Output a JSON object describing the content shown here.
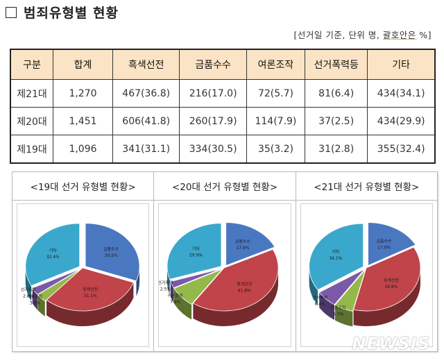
{
  "title": "범죄유형별 현황",
  "note": {
    "prefix": "[선거일 기준, 단위 명, ",
    "underlined": "괄호안은",
    "suffix": " %]"
  },
  "table": {
    "headers": [
      "구분",
      "합계",
      "흑색선전",
      "금품수수",
      "여론조작",
      "선거폭력등",
      "기타"
    ],
    "rows": [
      [
        "제21대",
        "1,270",
        "467(36.8)",
        "216(17.0)",
        "72(5.7)",
        "81(6.4)",
        "434(34.1)"
      ],
      [
        "제20대",
        "1,451",
        "606(41.8)",
        "260(17.9)",
        "114(7.9)",
        "37(2.5)",
        "434(29.9)"
      ],
      [
        "제19대",
        "1,096",
        "341(31.1)",
        "334(30.5)",
        "35(3.2)",
        "31(2.8)",
        "355(32.4)"
      ]
    ]
  },
  "colors": {
    "금품수수": "#4a78c0",
    "흑색선전": "#c0444a",
    "여론조작": "#95b84a",
    "선거폭력": "#7a5aa8",
    "기타": "#3aa8cc",
    "header_bg": "#fbe4c5"
  },
  "chart_data": [
    {
      "type": "pie",
      "title": "<19대 선거 유형별 현황>",
      "categories": [
        "금품수수",
        "흑색선전",
        "여론조작",
        "선거폭력",
        "기타"
      ],
      "values": [
        30.5,
        31.1,
        3.2,
        2.8,
        32.4
      ],
      "labels": [
        "30.5%",
        "31.1%",
        "3.2%",
        "2.8%",
        "32.4%"
      ]
    },
    {
      "type": "pie",
      "title": "<20대 선거 유형별 현황>",
      "categories": [
        "금품수수",
        "흑색선전",
        "여론조작",
        "선거폭력",
        "기타"
      ],
      "values": [
        17.9,
        41.8,
        7.9,
        2.5,
        29.9
      ],
      "labels": [
        "17.9%",
        "41.8%",
        "7.9%",
        "2.5%",
        "29.9%"
      ]
    },
    {
      "type": "pie",
      "title": "<21대 선거 유형별 현황>",
      "categories": [
        "금품수수",
        "흑색선전",
        "여론조작",
        "선거폭력",
        "기타"
      ],
      "values": [
        17.0,
        36.8,
        5.7,
        6.4,
        34.1
      ],
      "labels": [
        "17.0%",
        "36.8%",
        "5.7%",
        "6.4%",
        "34.1%"
      ]
    }
  ],
  "watermark": "NEWSIS"
}
